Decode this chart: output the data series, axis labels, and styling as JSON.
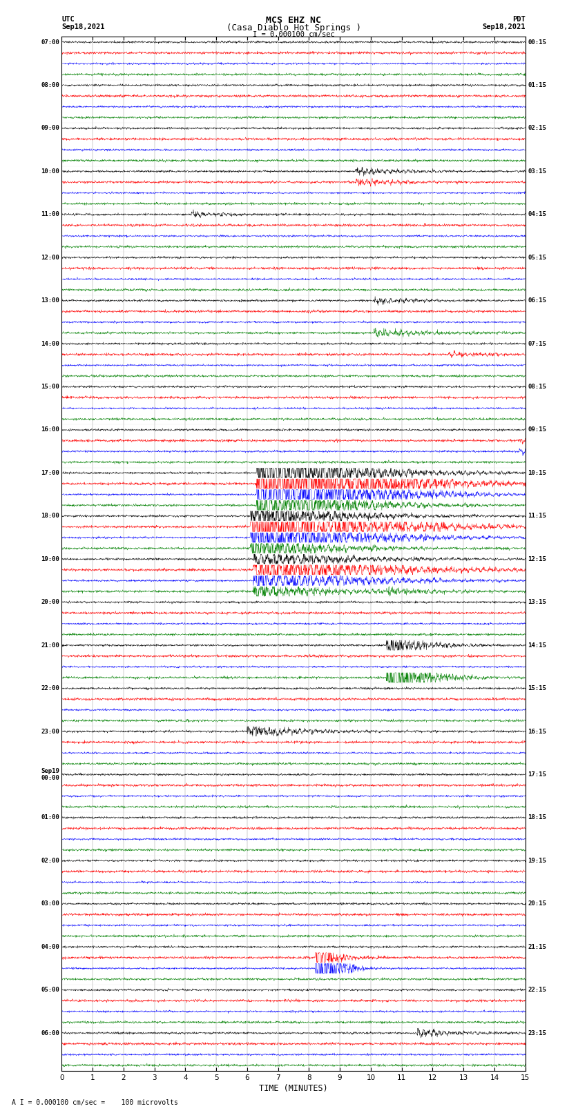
{
  "title_line1": "MCS EHZ NC",
  "title_line2": "(Casa Diablo Hot Springs )",
  "scale_label": "I = 0.000100 cm/sec",
  "bottom_label": "A I = 0.000100 cm/sec =    100 microvolts",
  "xlabel": "TIME (MINUTES)",
  "utc_label": "UTC",
  "utc_date": "Sep18,2021",
  "pdt_label": "PDT",
  "pdt_date": "Sep18,2021",
  "left_times": [
    "07:00",
    "08:00",
    "09:00",
    "10:00",
    "11:00",
    "12:00",
    "13:00",
    "14:00",
    "15:00",
    "16:00",
    "17:00",
    "18:00",
    "19:00",
    "20:00",
    "21:00",
    "22:00",
    "23:00",
    "Sep19\n00:00",
    "01:00",
    "02:00",
    "03:00",
    "04:00",
    "05:00",
    "06:00"
  ],
  "right_times": [
    "00:15",
    "01:15",
    "02:15",
    "03:15",
    "04:15",
    "05:15",
    "06:15",
    "07:15",
    "08:15",
    "09:15",
    "10:15",
    "11:15",
    "12:15",
    "13:15",
    "14:15",
    "15:15",
    "16:15",
    "17:15",
    "18:15",
    "19:15",
    "20:15",
    "21:15",
    "22:15",
    "23:15"
  ],
  "num_rows": 24,
  "traces_per_row": 4,
  "colors": [
    "black",
    "red",
    "blue",
    "green"
  ],
  "bg_color": "white",
  "noise_amplitude": 0.012,
  "xmin": 0,
  "xmax": 15,
  "xticks": [
    0,
    1,
    2,
    3,
    4,
    5,
    6,
    7,
    8,
    9,
    10,
    11,
    12,
    13,
    14,
    15
  ],
  "eq_row": 10,
  "eq_minute": 6.3,
  "eq2_row": 21,
  "eq2_minute": 8.2,
  "small_events": [
    {
      "row": 3,
      "col": 0,
      "minute": 9.5,
      "amp": 3.0
    },
    {
      "row": 3,
      "col": 1,
      "minute": 9.5,
      "amp": 2.5
    },
    {
      "row": 4,
      "col": 0,
      "minute": 4.2,
      "amp": 2.0
    },
    {
      "row": 6,
      "col": 3,
      "minute": 10.1,
      "amp": 4.0
    },
    {
      "row": 6,
      "col": 0,
      "minute": 10.1,
      "amp": 2.5
    },
    {
      "row": 7,
      "col": 1,
      "minute": 12.5,
      "amp": 2.0
    },
    {
      "row": 9,
      "col": 1,
      "minute": 14.8,
      "amp": 3.0
    },
    {
      "row": 9,
      "col": 2,
      "minute": 14.8,
      "amp": 2.5
    },
    {
      "row": 12,
      "col": 2,
      "minute": 7.5,
      "amp": 3.5
    },
    {
      "row": 12,
      "col": 3,
      "minute": 10.5,
      "amp": 3.0
    },
    {
      "row": 16,
      "col": 0,
      "minute": 6.0,
      "amp": 5.0
    },
    {
      "row": 23,
      "col": 0,
      "minute": 11.5,
      "amp": 3.0
    }
  ]
}
